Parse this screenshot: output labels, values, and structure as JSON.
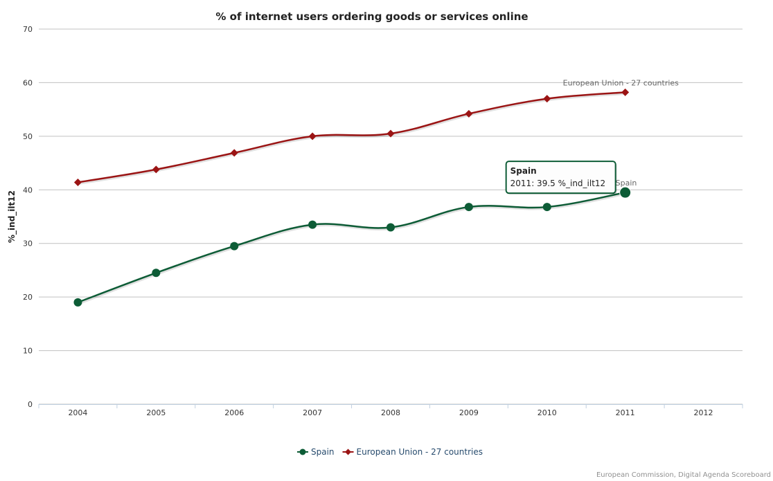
{
  "chart_data": {
    "type": "line",
    "title": "% of internet users ordering goods or services online",
    "xlabel": "",
    "ylabel": "%_ind_ilt12",
    "categories": [
      "2004",
      "2005",
      "2006",
      "2007",
      "2008",
      "2009",
      "2010",
      "2011",
      "2012"
    ],
    "ylim": [
      0,
      70
    ],
    "yticks": [
      0,
      10,
      20,
      30,
      40,
      50,
      60,
      70
    ],
    "grid": true,
    "legend_position": "bottom",
    "series": [
      {
        "name": "Spain",
        "color": "#0d5c36",
        "marker": "circle",
        "values": [
          19,
          24.5,
          29.5,
          33.5,
          33,
          36.8,
          36.8,
          39.5,
          null
        ],
        "end_label": "Spain"
      },
      {
        "name": "European Union - 27 countries",
        "color": "#9b1414",
        "marker": "diamond",
        "values": [
          41.4,
          43.8,
          46.9,
          50,
          50.5,
          54.2,
          57,
          58.2,
          null
        ],
        "end_label": "European Union - 27 countries"
      }
    ],
    "tooltip": {
      "series": "Spain",
      "category": "2011",
      "title": "Spain",
      "body": "2011: 39.5 %_ind_ilt12"
    },
    "credit": "European Commission, Digital Agenda Scoreboard"
  }
}
